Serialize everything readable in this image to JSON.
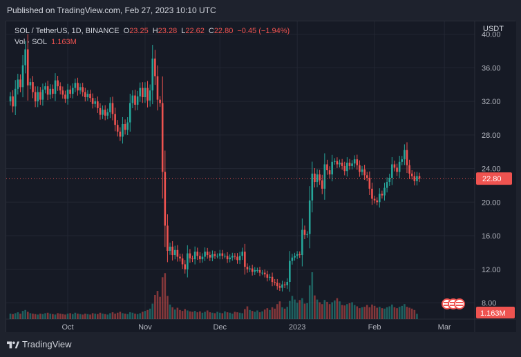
{
  "header": {
    "published": "Published on TradingView.com, Feb 27, 2023 10:10 UTC"
  },
  "legend": {
    "symbol": "SOL / TetherUS, 1D, BINANCE",
    "o_label": "O",
    "o_value": "23.25",
    "h_label": "H",
    "h_value": "23.28",
    "l_label": "L",
    "l_value": "22.62",
    "c_label": "C",
    "c_value": "22.80",
    "change": "−0.45 (−1.94%)",
    "vol_label": "Vol · SOL",
    "vol_value": "1.163M"
  },
  "footer": {
    "brand": "TradingView"
  },
  "colors": {
    "up": "#26a69a",
    "down": "#ef5350",
    "bg": "#161a25",
    "grid": "#232733",
    "text": "#b2b5be"
  },
  "chart_data": {
    "type": "candlestick",
    "currency_label": "USDT",
    "y_ticks": [
      "40.00",
      "36.00",
      "32.00",
      "28.00",
      "24.00",
      "20.00",
      "16.00",
      "12.00",
      "8.00"
    ],
    "ylim": [
      6.4,
      41.2
    ],
    "x_ticks": [
      "Oct",
      "Nov",
      "Dec",
      "2023",
      "Feb",
      "Mar"
    ],
    "x_tick_index": [
      23,
      54,
      84,
      115,
      146,
      174
    ],
    "last_price": "22.80",
    "last_volume": "1.163M",
    "closes": [
      32.6,
      31.4,
      33.5,
      34.6,
      33.7,
      36.3,
      38.2,
      33.9,
      34.3,
      33.1,
      32.0,
      33.1,
      32.2,
      33.4,
      33.8,
      32.8,
      33.5,
      32.9,
      34.5,
      33.8,
      33.3,
      32.8,
      32.3,
      33.4,
      32.9,
      33.6,
      34.2,
      33.3,
      33.7,
      33.1,
      32.5,
      32.9,
      32.4,
      31.7,
      32.0,
      31.2,
      30.4,
      31.0,
      30.3,
      30.7,
      31.8,
      30.5,
      29.2,
      28.4,
      27.8,
      29.3,
      28.6,
      29.5,
      31.8,
      32.7,
      31.6,
      32.6,
      33.6,
      32.5,
      33.6,
      32.1,
      33.3,
      37.1,
      35.0,
      32.2,
      31.8,
      23.6,
      17.2,
      14.2,
      14.7,
      13.7,
      14.3,
      13.5,
      13.3,
      12.6,
      12.0,
      13.9,
      13.3,
      13.2,
      14.1,
      13.6,
      13.2,
      13.5,
      14.1,
      13.7,
      13.4,
      13.8,
      13.6,
      13.6,
      13.9,
      13.6,
      13.6,
      13.2,
      13.4,
      13.6,
      13.5,
      13.1,
      13.6,
      14.1,
      12.3,
      12.0,
      12.1,
      11.7,
      11.9,
      11.9,
      11.6,
      11.6,
      11.4,
      11.0,
      11.1,
      10.5,
      10.4,
      10.0,
      9.8,
      10.2,
      10.1,
      10.5,
      13.0,
      13.4,
      13.6,
      13.8,
      13.7,
      16.7,
      16.1,
      16.2,
      20.2,
      23.4,
      22.4,
      23.3,
      22.6,
      21.6,
      24.5,
      23.8,
      23.3,
      24.8,
      24.9,
      24.5,
      24.7,
      24.3,
      23.7,
      24.7,
      24.3,
      24.6,
      25.1,
      24.4,
      23.6,
      23.9,
      23.2,
      22.9,
      21.6,
      20.4,
      20.2,
      20.0,
      21.0,
      20.8,
      21.7,
      22.4,
      22.9,
      24.5,
      24.1,
      23.6,
      24.8,
      25.1,
      26.2,
      24.4,
      23.4,
      23.1,
      22.5,
      23.1,
      22.8
    ],
    "volumes_m": [
      1.2,
      1.1,
      1.3,
      1.5,
      1.2,
      1.8,
      2.0,
      1.6,
      1.3,
      1.2,
      1.1,
      1.0,
      1.2,
      1.1,
      1.3,
      1.4,
      1.2,
      1.1,
      1.0,
      1.3,
      1.2,
      1.1,
      1.0,
      1.2,
      1.3,
      1.1,
      1.4,
      1.2,
      1.1,
      1.0,
      1.2,
      1.1,
      1.0,
      1.3,
      1.2,
      1.1,
      1.4,
      1.2,
      1.1,
      1.0,
      1.3,
      1.5,
      1.2,
      1.4,
      1.6,
      1.3,
      1.2,
      1.1,
      1.5,
      1.4,
      1.2,
      1.1,
      1.3,
      1.6,
      1.8,
      2.0,
      2.3,
      3.4,
      5.3,
      6.2,
      4.9,
      9.2,
      10.1,
      5.1,
      3.2,
      2.6,
      2.1,
      2.5,
      2.0,
      1.8,
      2.2,
      1.9,
      1.7,
      1.6,
      1.8,
      1.5,
      1.7,
      1.4,
      1.6,
      1.9,
      1.5,
      1.4,
      1.3,
      1.6,
      1.4,
      1.3,
      1.7,
      1.5,
      1.4,
      1.2,
      1.6,
      1.5,
      1.4,
      1.3,
      2.2,
      2.8,
      2.0,
      1.8,
      1.6,
      1.9,
      1.5,
      1.7,
      2.1,
      2.4,
      2.0,
      2.6,
      2.3,
      3.3,
      3.9,
      2.6,
      2.3,
      2.7,
      4.0,
      5.1,
      4.3,
      3.6,
      4.2,
      4.6,
      3.4,
      3.5,
      7.4,
      10.3,
      5.2,
      4.3,
      3.7,
      3.3,
      4.2,
      3.8,
      3.3,
      3.7,
      4.1,
      4.6,
      3.9,
      3.1,
      3.0,
      3.3,
      3.5,
      3.7,
      3.1,
      2.8,
      2.4,
      2.6,
      2.7,
      3.1,
      2.6,
      3.2,
      2.9,
      2.5,
      2.7,
      2.4,
      2.3,
      2.6,
      2.8,
      3.2,
      2.6,
      2.4,
      2.7,
      2.9,
      3.3,
      2.7,
      2.5,
      2.3,
      2.0,
      1.163
    ]
  }
}
